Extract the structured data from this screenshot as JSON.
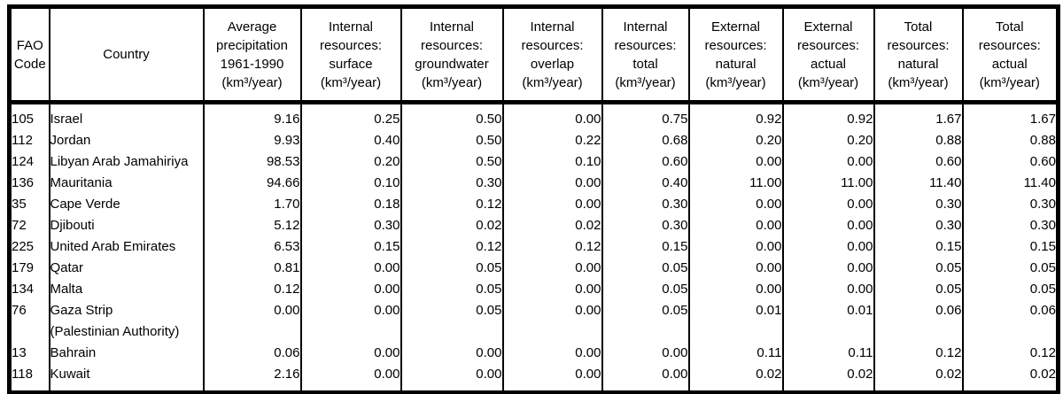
{
  "colors": {
    "border": "#000000",
    "text": "#000000",
    "background": "#ffffff"
  },
  "table": {
    "columns": [
      {
        "id": "fao_code",
        "lines": [
          "FAO",
          "Code"
        ]
      },
      {
        "id": "country",
        "lines": [
          "Country"
        ]
      },
      {
        "id": "avg_precip",
        "lines": [
          "Average",
          "precipitation",
          "1961-1990",
          "(km³/year)"
        ]
      },
      {
        "id": "int_surface",
        "lines": [
          "Internal",
          "resources:",
          "surface",
          "(km³/year)"
        ]
      },
      {
        "id": "int_gw",
        "lines": [
          "Internal",
          "resources:",
          "groundwater",
          "(km³/year)"
        ]
      },
      {
        "id": "int_overlap",
        "lines": [
          "Internal",
          "resources:",
          "overlap",
          "(km³/year)"
        ]
      },
      {
        "id": "int_total",
        "lines": [
          "Internal",
          "resources:",
          "total",
          "(km³/year)"
        ]
      },
      {
        "id": "ext_natural",
        "lines": [
          "External",
          "resources:",
          "natural",
          "(km³/year)"
        ]
      },
      {
        "id": "ext_actual",
        "lines": [
          "External",
          "resources:",
          "actual",
          "(km³/year)"
        ]
      },
      {
        "id": "tot_natural",
        "lines": [
          "Total",
          "resources:",
          "natural",
          "(km³/year)"
        ]
      },
      {
        "id": "tot_actual",
        "lines": [
          "Total",
          "resources:",
          "actual",
          "(km³/year)"
        ]
      }
    ],
    "rows": [
      {
        "fao_code": "105",
        "country": [
          "Israel"
        ],
        "values": [
          "9.16",
          "0.25",
          "0.50",
          "0.00",
          "0.75",
          "0.92",
          "0.92",
          "1.67",
          "1.67"
        ]
      },
      {
        "fao_code": "112",
        "country": [
          "Jordan"
        ],
        "values": [
          "9.93",
          "0.40",
          "0.50",
          "0.22",
          "0.68",
          "0.20",
          "0.20",
          "0.88",
          "0.88"
        ]
      },
      {
        "fao_code": "124",
        "country": [
          "Libyan Arab Jamahiriya"
        ],
        "values": [
          "98.53",
          "0.20",
          "0.50",
          "0.10",
          "0.60",
          "0.00",
          "0.00",
          "0.60",
          "0.60"
        ]
      },
      {
        "fao_code": "136",
        "country": [
          "Mauritania"
        ],
        "values": [
          "94.66",
          "0.10",
          "0.30",
          "0.00",
          "0.40",
          "11.00",
          "11.00",
          "11.40",
          "11.40"
        ]
      },
      {
        "fao_code": "35",
        "country": [
          "Cape Verde"
        ],
        "values": [
          "1.70",
          "0.18",
          "0.12",
          "0.00",
          "0.30",
          "0.00",
          "0.00",
          "0.30",
          "0.30"
        ]
      },
      {
        "fao_code": "72",
        "country": [
          "Djibouti"
        ],
        "values": [
          "5.12",
          "0.30",
          "0.02",
          "0.02",
          "0.30",
          "0.00",
          "0.00",
          "0.30",
          "0.30"
        ]
      },
      {
        "fao_code": "225",
        "country": [
          "United Arab Emirates"
        ],
        "values": [
          "6.53",
          "0.15",
          "0.12",
          "0.12",
          "0.15",
          "0.00",
          "0.00",
          "0.15",
          "0.15"
        ]
      },
      {
        "fao_code": "179",
        "country": [
          "Qatar"
        ],
        "values": [
          "0.81",
          "0.00",
          "0.05",
          "0.00",
          "0.05",
          "0.00",
          "0.00",
          "0.05",
          "0.05"
        ]
      },
      {
        "fao_code": "134",
        "country": [
          "Malta"
        ],
        "values": [
          "0.12",
          "0.00",
          "0.05",
          "0.00",
          "0.05",
          "0.00",
          "0.00",
          "0.05",
          "0.05"
        ]
      },
      {
        "fao_code": "76",
        "country": [
          "Gaza Strip",
          "(Palestinian Authority)"
        ],
        "values": [
          "0.00",
          "0.00",
          "0.05",
          "0.00",
          "0.05",
          "0.01",
          "0.01",
          "0.06",
          "0.06"
        ]
      },
      {
        "fao_code": "13",
        "country": [
          "Bahrain"
        ],
        "values": [
          "0.06",
          "0.00",
          "0.00",
          "0.00",
          "0.00",
          "0.11",
          "0.11",
          "0.12",
          "0.12"
        ]
      },
      {
        "fao_code": "118",
        "country": [
          "Kuwait"
        ],
        "values": [
          "2.16",
          "0.00",
          "0.00",
          "0.00",
          "0.00",
          "0.02",
          "0.02",
          "0.02",
          "0.02"
        ]
      }
    ]
  }
}
